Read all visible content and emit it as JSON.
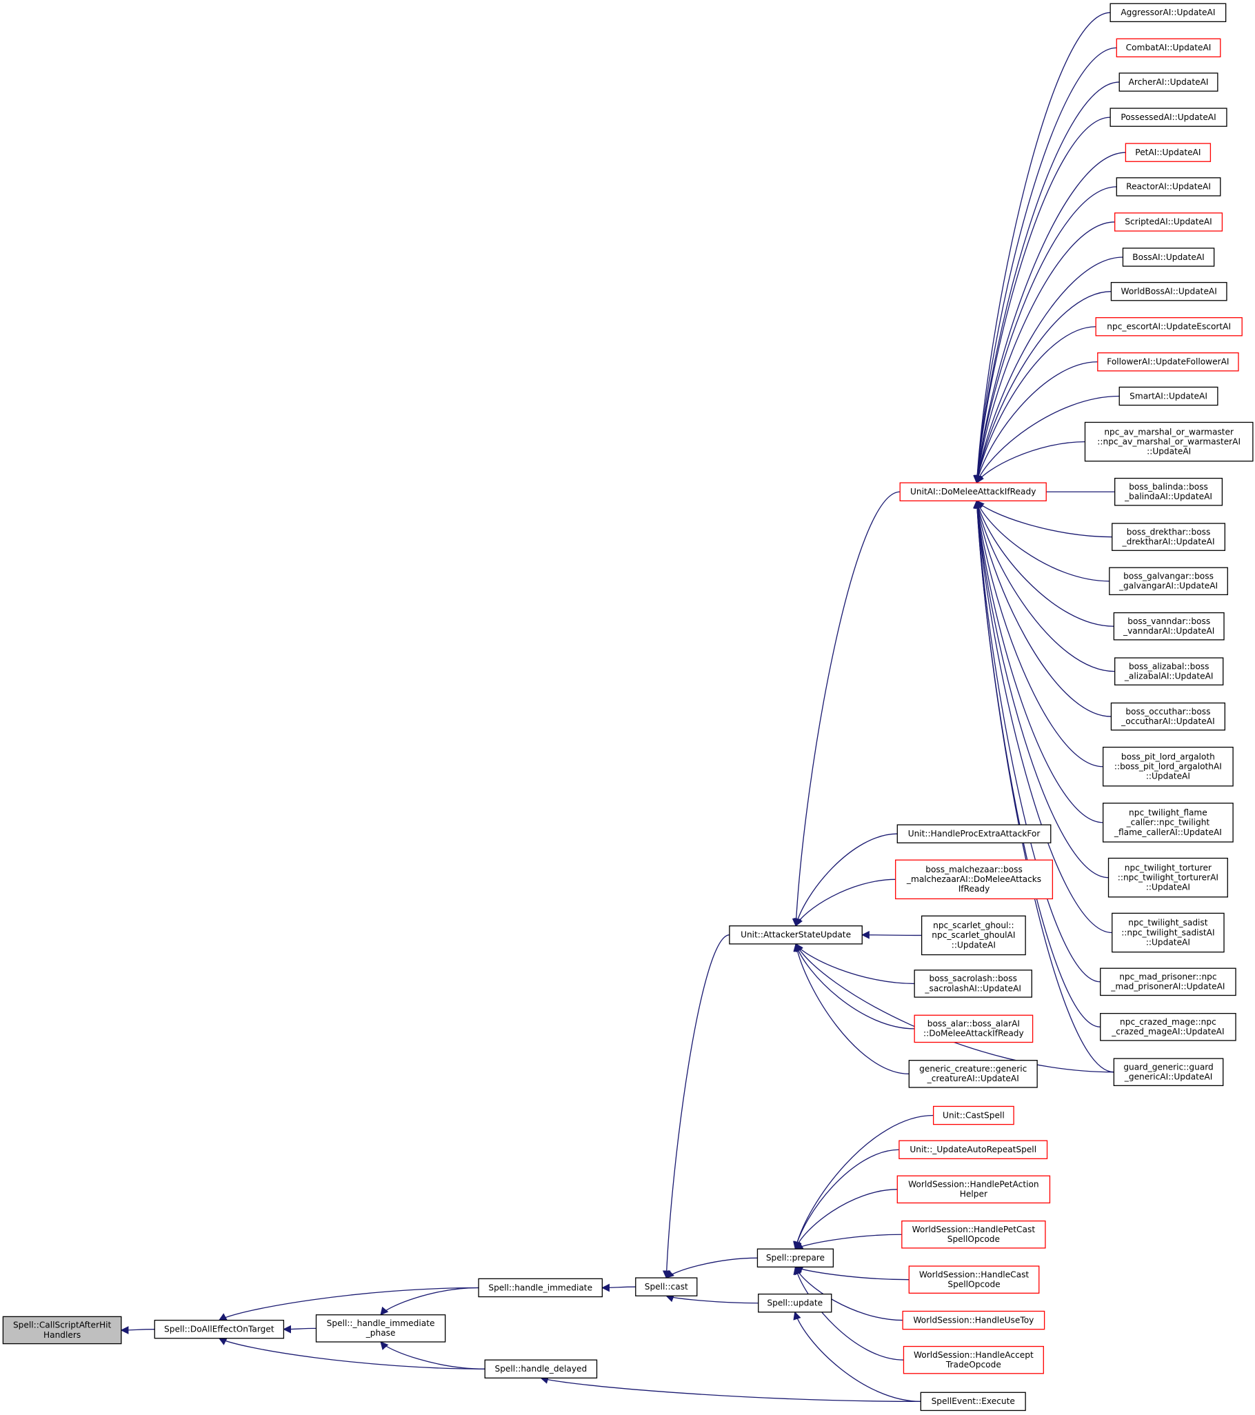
{
  "colors": {
    "edge": "#191970",
    "external_border": "#ff0000",
    "normal_border": "#000000",
    "root_fill": "#bfbfbf"
  },
  "nodes": [
    {
      "id": "aggressor",
      "lines": [
        "AggressorAI::UpdateAI"
      ],
      "style": "normal"
    },
    {
      "id": "combat",
      "lines": [
        "CombatAI::UpdateAI"
      ],
      "style": "red"
    },
    {
      "id": "archer",
      "lines": [
        "ArcherAI::UpdateAI"
      ],
      "style": "normal"
    },
    {
      "id": "possessed",
      "lines": [
        "PossessedAI::UpdateAI"
      ],
      "style": "normal"
    },
    {
      "id": "pet",
      "lines": [
        "PetAI::UpdateAI"
      ],
      "style": "red"
    },
    {
      "id": "reactor",
      "lines": [
        "ReactorAI::UpdateAI"
      ],
      "style": "normal"
    },
    {
      "id": "scripted",
      "lines": [
        "ScriptedAI::UpdateAI"
      ],
      "style": "red"
    },
    {
      "id": "boss",
      "lines": [
        "BossAI::UpdateAI"
      ],
      "style": "normal"
    },
    {
      "id": "worldboss",
      "lines": [
        "WorldBossAI::UpdateAI"
      ],
      "style": "normal"
    },
    {
      "id": "escort",
      "lines": [
        "npc_escortAI::UpdateEscortAI"
      ],
      "style": "red"
    },
    {
      "id": "follower",
      "lines": [
        "FollowerAI::UpdateFollowerAI"
      ],
      "style": "red"
    },
    {
      "id": "smart",
      "lines": [
        "SmartAI::UpdateAI"
      ],
      "style": "normal"
    },
    {
      "id": "avmarshal",
      "lines": [
        "npc_av_marshal_or_warmaster",
        "::npc_av_marshal_or_warmasterAI",
        "::UpdateAI"
      ],
      "style": "normal"
    },
    {
      "id": "balinda",
      "lines": [
        "boss_balinda::boss",
        "_balindaAI::UpdateAI"
      ],
      "style": "normal"
    },
    {
      "id": "drekthar",
      "lines": [
        "boss_drekthar::boss",
        "_drektharAI::UpdateAI"
      ],
      "style": "normal"
    },
    {
      "id": "galvangar",
      "lines": [
        "boss_galvangar::boss",
        "_galvangarAI::UpdateAI"
      ],
      "style": "normal"
    },
    {
      "id": "vanndar",
      "lines": [
        "boss_vanndar::boss",
        "_vanndarAI::UpdateAI"
      ],
      "style": "normal"
    },
    {
      "id": "alizabal",
      "lines": [
        "boss_alizabal::boss",
        "_alizabalAI::UpdateAI"
      ],
      "style": "normal"
    },
    {
      "id": "occuthar",
      "lines": [
        "boss_occuthar::boss",
        "_occutharAI::UpdateAI"
      ],
      "style": "normal"
    },
    {
      "id": "argaloth",
      "lines": [
        "boss_pit_lord_argaloth",
        "::boss_pit_lord_argalothAI",
        "::UpdateAI"
      ],
      "style": "normal"
    },
    {
      "id": "flamecaller",
      "lines": [
        "npc_twilight_flame",
        "_caller::npc_twilight",
        "_flame_callerAI::UpdateAI"
      ],
      "style": "normal"
    },
    {
      "id": "torturer",
      "lines": [
        "npc_twilight_torturer",
        "::npc_twilight_torturerAI",
        "::UpdateAI"
      ],
      "style": "normal"
    },
    {
      "id": "sadist",
      "lines": [
        "npc_twilight_sadist",
        "::npc_twilight_sadistAI",
        "::UpdateAI"
      ],
      "style": "normal"
    },
    {
      "id": "madprisoner",
      "lines": [
        "npc_mad_prisoner::npc",
        "_mad_prisonerAI::UpdateAI"
      ],
      "style": "normal"
    },
    {
      "id": "crazedmage",
      "lines": [
        "npc_crazed_mage::npc",
        "_crazed_mageAI::UpdateAI"
      ],
      "style": "normal"
    },
    {
      "id": "guard",
      "lines": [
        "guard_generic::guard",
        "_genericAI::UpdateAI"
      ],
      "style": "normal"
    },
    {
      "id": "domelee",
      "lines": [
        "UnitAI::DoMeleeAttackIfReady"
      ],
      "style": "red"
    },
    {
      "id": "procextra",
      "lines": [
        "Unit::HandleProcExtraAttackFor"
      ],
      "style": "normal"
    },
    {
      "id": "malchezaar",
      "lines": [
        "boss_malchezaar::boss",
        "_malchezaarAI::DoMeleeAttacks",
        "IfReady"
      ],
      "style": "red"
    },
    {
      "id": "scarletghoul",
      "lines": [
        "npc_scarlet_ghoul::",
        "npc_scarlet_ghoulAI",
        "::UpdateAI"
      ],
      "style": "normal"
    },
    {
      "id": "sacrolash",
      "lines": [
        "boss_sacrolash::boss",
        "_sacrolashAI::UpdateAI"
      ],
      "style": "normal"
    },
    {
      "id": "alar",
      "lines": [
        "boss_alar::boss_alarAI",
        "::DoMeleeAttackIfReady"
      ],
      "style": "red"
    },
    {
      "id": "genericcreature",
      "lines": [
        "generic_creature::generic",
        "_creatureAI::UpdateAI"
      ],
      "style": "normal"
    },
    {
      "id": "castspell",
      "lines": [
        "Unit::CastSpell"
      ],
      "style": "red"
    },
    {
      "id": "autorepeat",
      "lines": [
        "Unit::_UpdateAutoRepeatSpell"
      ],
      "style": "red"
    },
    {
      "id": "petaction",
      "lines": [
        "WorldSession::HandlePetAction",
        "Helper"
      ],
      "style": "red"
    },
    {
      "id": "petcast",
      "lines": [
        "WorldSession::HandlePetCast",
        "SpellOpcode"
      ],
      "style": "red"
    },
    {
      "id": "castopcode",
      "lines": [
        "WorldSession::HandleCast",
        "SpellOpcode"
      ],
      "style": "red"
    },
    {
      "id": "usetoy",
      "lines": [
        "WorldSession::HandleUseToy"
      ],
      "style": "red"
    },
    {
      "id": "accepttrade",
      "lines": [
        "WorldSession::HandleAccept",
        "TradeOpcode"
      ],
      "style": "red"
    },
    {
      "id": "spellevent",
      "lines": [
        "SpellEvent::Execute"
      ],
      "style": "normal"
    },
    {
      "id": "attacker",
      "lines": [
        "Unit::AttackerStateUpdate"
      ],
      "style": "normal"
    },
    {
      "id": "prepare",
      "lines": [
        "Spell::prepare"
      ],
      "style": "normal"
    },
    {
      "id": "update",
      "lines": [
        "Spell::update"
      ],
      "style": "normal"
    },
    {
      "id": "cast",
      "lines": [
        "Spell::cast"
      ],
      "style": "normal"
    },
    {
      "id": "handleimmediate",
      "lines": [
        "Spell::handle_immediate"
      ],
      "style": "normal"
    },
    {
      "id": "immediatephase",
      "lines": [
        "Spell::_handle_immediate",
        "_phase"
      ],
      "style": "normal"
    },
    {
      "id": "handledelayed",
      "lines": [
        "Spell::handle_delayed"
      ],
      "style": "normal"
    },
    {
      "id": "doalleffect",
      "lines": [
        "Spell::DoAllEffectOnTarget"
      ],
      "style": "normal"
    },
    {
      "id": "callscript",
      "lines": [
        "Spell::CallScriptAfterHit",
        "Handlers"
      ],
      "style": "root"
    }
  ],
  "edges": [
    [
      "callscript",
      "doalleffect"
    ],
    [
      "doalleffect",
      "handleimmediate"
    ],
    [
      "doalleffect",
      "immediatephase"
    ],
    [
      "doalleffect",
      "handledelayed"
    ],
    [
      "immediatephase",
      "handleimmediate"
    ],
    [
      "immediatephase",
      "handledelayed"
    ],
    [
      "handleimmediate",
      "cast"
    ],
    [
      "handledelayed",
      "spellevent"
    ],
    [
      "cast",
      "prepare"
    ],
    [
      "cast",
      "update"
    ],
    [
      "cast",
      "attacker"
    ],
    [
      "update",
      "spellevent"
    ],
    [
      "prepare",
      "castspell"
    ],
    [
      "prepare",
      "autorepeat"
    ],
    [
      "prepare",
      "petaction"
    ],
    [
      "prepare",
      "petcast"
    ],
    [
      "prepare",
      "castopcode"
    ],
    [
      "prepare",
      "usetoy"
    ],
    [
      "prepare",
      "accepttrade"
    ],
    [
      "attacker",
      "domelee"
    ],
    [
      "attacker",
      "procextra"
    ],
    [
      "attacker",
      "malchezaar"
    ],
    [
      "attacker",
      "scarletghoul"
    ],
    [
      "attacker",
      "sacrolash"
    ],
    [
      "attacker",
      "alar"
    ],
    [
      "attacker",
      "genericcreature"
    ],
    [
      "attacker",
      "guard"
    ],
    [
      "domelee",
      "aggressor"
    ],
    [
      "domelee",
      "combat"
    ],
    [
      "domelee",
      "archer"
    ],
    [
      "domelee",
      "possessed"
    ],
    [
      "domelee",
      "pet"
    ],
    [
      "domelee",
      "reactor"
    ],
    [
      "domelee",
      "scripted"
    ],
    [
      "domelee",
      "boss"
    ],
    [
      "domelee",
      "worldboss"
    ],
    [
      "domelee",
      "escort"
    ],
    [
      "domelee",
      "follower"
    ],
    [
      "domelee",
      "smart"
    ],
    [
      "domelee",
      "avmarshal"
    ],
    [
      "domelee",
      "balinda"
    ],
    [
      "domelee",
      "drekthar"
    ],
    [
      "domelee",
      "galvangar"
    ],
    [
      "domelee",
      "vanndar"
    ],
    [
      "domelee",
      "alizabal"
    ],
    [
      "domelee",
      "occuthar"
    ],
    [
      "domelee",
      "argaloth"
    ],
    [
      "domelee",
      "flamecaller"
    ],
    [
      "domelee",
      "torturer"
    ],
    [
      "domelee",
      "sadist"
    ],
    [
      "domelee",
      "madprisoner"
    ],
    [
      "domelee",
      "crazedmage"
    ],
    [
      "domelee",
      "guard"
    ]
  ]
}
